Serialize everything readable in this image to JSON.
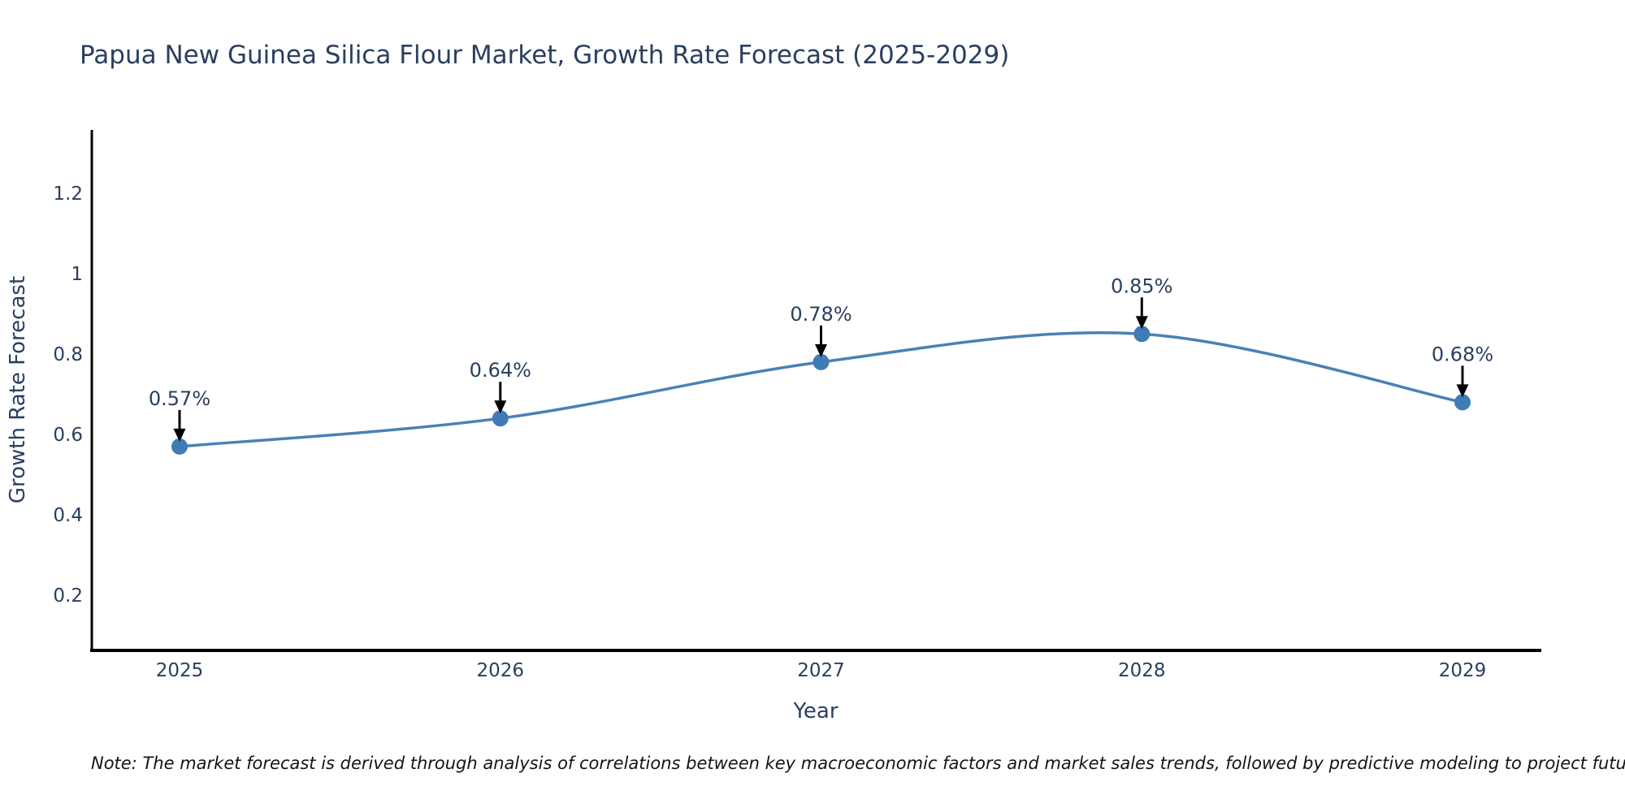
{
  "title": "Papua New Guinea Silica Flour Market, Growth Rate Forecast (2025-2029)",
  "note": "Note: The market forecast is derived through analysis of correlations between key macroeconomic factors and market sales trends, followed by predictive modeling to project future sales",
  "chart_data": {
    "type": "line",
    "title": "Papua New Guinea Silica Flour Market, Growth Rate Forecast (2025-2029)",
    "xlabel": "Year",
    "ylabel": "Growth Rate Forecast",
    "categories": [
      "2025",
      "2026",
      "2027",
      "2028",
      "2029"
    ],
    "series": [
      {
        "name": "Growth Rate Forecast",
        "values": [
          0.57,
          0.64,
          0.78,
          0.85,
          0.68
        ]
      }
    ],
    "point_labels": [
      "0.57%",
      "0.64%",
      "0.78%",
      "0.85%",
      "0.68%"
    ],
    "y_ticks": [
      0.2,
      0.4,
      0.6,
      0.8,
      1.0,
      1.2
    ],
    "y_tick_labels": [
      "0.2",
      "0.4",
      "0.6",
      "0.8",
      "1",
      "1.2"
    ],
    "ylim": [
      0.06,
      1.36
    ],
    "grid": false,
    "legend": "none",
    "line_shape": "spline",
    "colors": {
      "line": "#4a81b4",
      "marker": "#3f7cb6",
      "text": "#2a3f5f",
      "axis": "#000000",
      "arrow": "#000000",
      "background": "#ffffff"
    }
  }
}
